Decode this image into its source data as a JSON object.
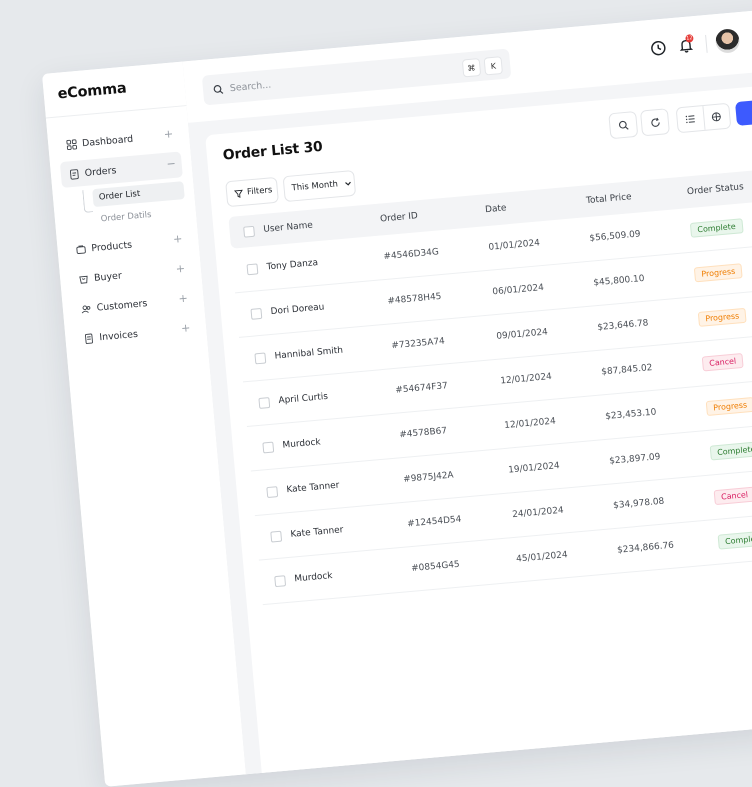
{
  "app": {
    "name": "eComma"
  },
  "sidebar": {
    "items": [
      {
        "label": "Dashboard",
        "icon": "grid-icon",
        "expand": "+"
      },
      {
        "label": "Orders",
        "icon": "orders-icon",
        "expand": "−"
      },
      {
        "label": "Products",
        "icon": "products-icon",
        "expand": "+"
      },
      {
        "label": "Buyer",
        "icon": "buyer-icon",
        "expand": "+"
      },
      {
        "label": "Customers",
        "icon": "customers-icon",
        "expand": "+"
      },
      {
        "label": "Invoices",
        "icon": "invoices-icon",
        "expand": "+"
      }
    ],
    "orders_sub": [
      {
        "label": "Order List"
      },
      {
        "label": "Order Datils"
      }
    ]
  },
  "header": {
    "search_placeholder": "Search...",
    "shortcut_keys": [
      "⌘",
      "K"
    ],
    "notification_count": "12"
  },
  "main": {
    "title": "Order List 30",
    "filters_label": "Filters",
    "period_label": "This Month",
    "columns": [
      "User Name",
      "Order ID",
      "Date",
      "Total Price",
      "Order Status"
    ],
    "rows": [
      {
        "name": "Tony Danza",
        "id": "#4546D34G",
        "date": "01/01/2024",
        "price": "$56,509.09",
        "status": "Complete",
        "kind": "complete"
      },
      {
        "name": "Dori Doreau",
        "id": "#48578H45",
        "date": "06/01/2024",
        "price": "$45,800.10",
        "status": "Progress",
        "kind": "progress"
      },
      {
        "name": "Hannibal Smith",
        "id": "#73235A74",
        "date": "09/01/2024",
        "price": "$23,646.78",
        "status": "Progress",
        "kind": "progress"
      },
      {
        "name": "April Curtis",
        "id": "#54674F37",
        "date": "12/01/2024",
        "price": "$87,845.02",
        "status": "Cancel",
        "kind": "cancel"
      },
      {
        "name": "Murdock",
        "id": "#4578B67",
        "date": "12/01/2024",
        "price": "$23,453.10",
        "status": "Progress",
        "kind": "progress"
      },
      {
        "name": "Kate Tanner",
        "id": "#9875J42A",
        "date": "19/01/2024",
        "price": "$23,897.09",
        "status": "Complete",
        "kind": "complete"
      },
      {
        "name": "Kate Tanner",
        "id": "#12454D54",
        "date": "24/01/2024",
        "price": "$34,978.08",
        "status": "Cancel",
        "kind": "cancel"
      },
      {
        "name": "Murdock",
        "id": "#0854G45",
        "date": "45/01/2024",
        "price": "$234,866.76",
        "status": "Complete",
        "kind": "complete"
      }
    ]
  },
  "colors": {
    "accent": "#3d5afe",
    "complete": "#2e7d32",
    "progress": "#ef7d00",
    "cancel": "#d81b60"
  }
}
